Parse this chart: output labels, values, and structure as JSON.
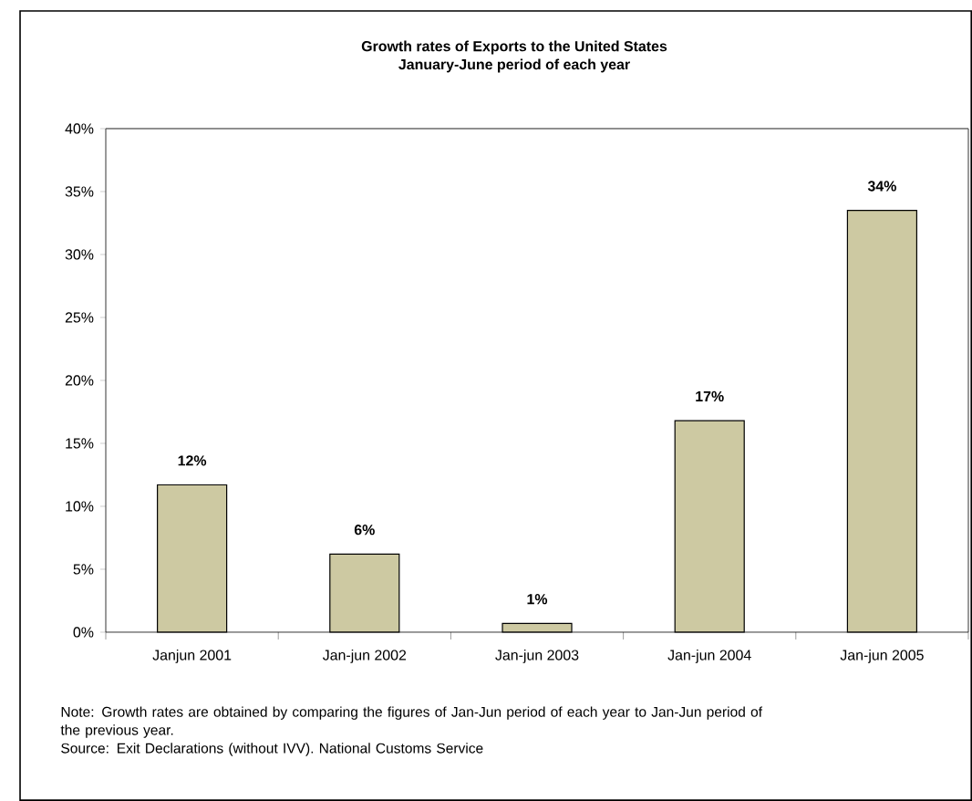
{
  "chart_data": {
    "type": "bar",
    "title": "Growth rates of Exports to the United States",
    "subtitle": "January-June period of each year",
    "categories": [
      "Janjun 2001",
      "Jan-jun 2002",
      "Jan-jun 2003",
      "Jan-jun 2004",
      "Jan-jun 2005"
    ],
    "values": [
      11.7,
      6.2,
      0.7,
      16.8,
      33.5
    ],
    "value_labels": [
      "12%",
      "6%",
      "1%",
      "17%",
      "34%"
    ],
    "color": "#cdc9a2",
    "ylim": [
      0,
      40
    ],
    "yticks": [
      {
        "value": 0,
        "label": "0%"
      },
      {
        "value": 5,
        "label": "5%"
      },
      {
        "value": 10,
        "label": "10%"
      },
      {
        "value": 15,
        "label": "15%"
      },
      {
        "value": 20,
        "label": "20%"
      },
      {
        "value": 25,
        "label": "25%"
      },
      {
        "value": 30,
        "label": "30%"
      },
      {
        "value": 35,
        "label": "35%"
      },
      {
        "value": 40,
        "label": "40%"
      }
    ],
    "annotations": [
      "Note: Growth rates are obtained by comparing the figures of Jan-Jun period of each year to Jan-Jun period of the previous year.",
      "Source: Exit Declarations (without IVV). National Customs Service"
    ]
  }
}
